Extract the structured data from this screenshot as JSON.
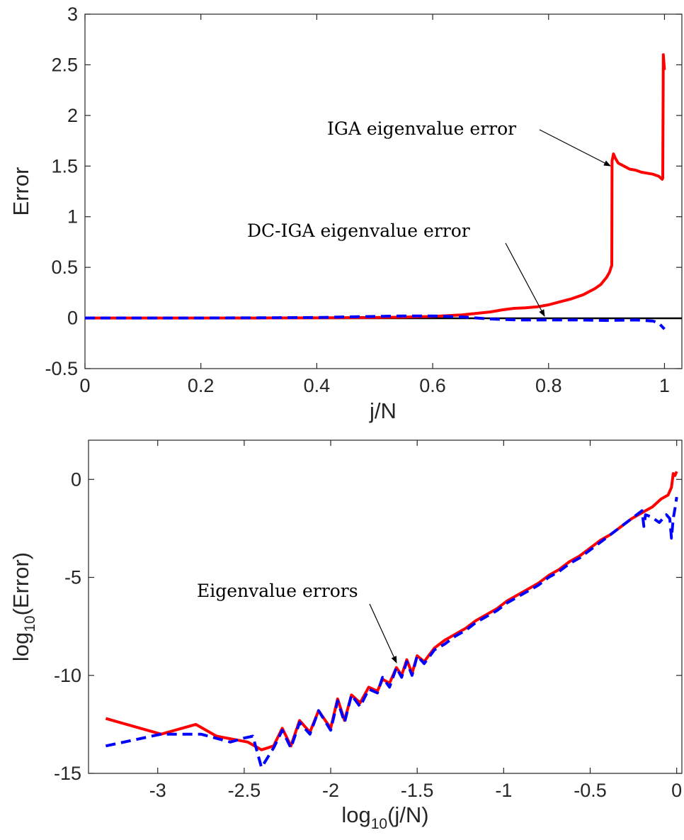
{
  "colors": {
    "iga": "#ff0000",
    "dc_iga": "#0000ff",
    "zero_line": "#000000",
    "axes": "#262626"
  },
  "chart_data": [
    {
      "type": "line",
      "xlabel": "j/N",
      "ylabel": "Error",
      "xlim": [
        0,
        1.03
      ],
      "ylim": [
        -0.5,
        3
      ],
      "xticks": [
        0,
        0.2,
        0.4,
        0.6,
        0.8,
        1
      ],
      "xtick_labels": [
        "0",
        "0.2",
        "0.4",
        "0.6",
        "0.8",
        "1"
      ],
      "yticks": [
        -0.5,
        0,
        0.5,
        1,
        1.5,
        2,
        2.5,
        3
      ],
      "ytick_labels": [
        "-0.5",
        "0",
        "0.5",
        "1",
        "1.5",
        "2",
        "2.5",
        "3"
      ],
      "grid": false,
      "reference_line_y": 0,
      "series": [
        {
          "key": "iga",
          "style": "solid",
          "x": [
            0,
            0.1,
            0.2,
            0.3,
            0.4,
            0.45,
            0.5,
            0.55,
            0.6,
            0.65,
            0.7,
            0.72,
            0.74,
            0.76,
            0.78,
            0.8,
            0.82,
            0.84,
            0.86,
            0.88,
            0.89,
            0.9,
            0.905,
            0.909,
            0.9095,
            0.912,
            0.915,
            0.92,
            0.93,
            0.94,
            0.95,
            0.96,
            0.97,
            0.98,
            0.99,
            0.996,
            0.997,
            0.998,
            1.0
          ],
          "y": [
            0,
            0,
            0,
            0,
            0.001,
            0.003,
            0.005,
            0.008,
            0.015,
            0.03,
            0.06,
            0.08,
            0.095,
            0.1,
            0.11,
            0.13,
            0.16,
            0.19,
            0.23,
            0.29,
            0.33,
            0.4,
            0.45,
            0.52,
            1.55,
            1.62,
            1.58,
            1.53,
            1.5,
            1.47,
            1.46,
            1.44,
            1.43,
            1.42,
            1.4,
            1.37,
            1.38,
            2.6,
            2.45
          ]
        },
        {
          "key": "dc_iga",
          "style": "dashed",
          "x": [
            0,
            0.1,
            0.2,
            0.3,
            0.4,
            0.45,
            0.5,
            0.55,
            0.6,
            0.65,
            0.7,
            0.75,
            0.8,
            0.85,
            0.9,
            0.95,
            0.98,
            0.99,
            1.0
          ],
          "y": [
            0,
            0,
            0,
            0.002,
            0.005,
            0.01,
            0.015,
            0.02,
            0.02,
            0.01,
            -0.01,
            -0.02,
            -0.02,
            -0.02,
            -0.025,
            -0.02,
            -0.03,
            -0.05,
            -0.11
          ]
        }
      ],
      "annotations": [
        {
          "text": "IGA eigenvalue error",
          "point": [
            0.91,
            1.52
          ]
        },
        {
          "text": "DC-IGA eigenvalue error",
          "point": [
            0.795,
            0
          ]
        }
      ]
    },
    {
      "type": "line",
      "xlabel_base": "log",
      "xlabel_sub": "10",
      "xlabel_arg": "(j/N)",
      "ylabel_base": "log",
      "ylabel_sub": "10",
      "ylabel_arg": "(Error)",
      "xlim": [
        -3.4,
        0.03
      ],
      "ylim": [
        -15,
        2
      ],
      "xticks": [
        -3,
        -2.5,
        -2,
        -1.5,
        -1,
        -0.5,
        0
      ],
      "xtick_labels": [
        "-3",
        "-2.5",
        "-2",
        "-1.5",
        "-1",
        "-0.5",
        "0"
      ],
      "yticks": [
        -15,
        -10,
        -5,
        0
      ],
      "ytick_labels": [
        "-15",
        "-10",
        "-5",
        "0"
      ],
      "grid": false,
      "series": [
        {
          "key": "iga",
          "style": "solid",
          "x": [
            -3.3,
            -2.98,
            -2.78,
            -2.66,
            -2.48,
            -2.4,
            -2.33,
            -2.28,
            -2.23,
            -2.18,
            -2.12,
            -2.07,
            -2.0,
            -1.96,
            -1.92,
            -1.88,
            -1.83,
            -1.78,
            -1.73,
            -1.7,
            -1.66,
            -1.62,
            -1.59,
            -1.56,
            -1.53,
            -1.5,
            -1.46,
            -1.4,
            -1.34,
            -1.28,
            -1.22,
            -1.16,
            -1.1,
            -1.04,
            -0.98,
            -0.92,
            -0.86,
            -0.8,
            -0.74,
            -0.68,
            -0.62,
            -0.56,
            -0.5,
            -0.44,
            -0.38,
            -0.32,
            -0.26,
            -0.2,
            -0.14,
            -0.09,
            -0.05,
            -0.03,
            -0.02,
            -0.01,
            0
          ],
          "y": [
            -12.2,
            -13.0,
            -12.5,
            -13.1,
            -13.4,
            -13.8,
            -13.6,
            -12.7,
            -13.6,
            -12.3,
            -12.9,
            -11.8,
            -12.7,
            -11.2,
            -12.3,
            -11.0,
            -11.4,
            -10.6,
            -10.8,
            -10.2,
            -10.4,
            -9.6,
            -10.0,
            -9.2,
            -9.9,
            -9.0,
            -9.3,
            -8.6,
            -8.2,
            -7.9,
            -7.6,
            -7.2,
            -6.9,
            -6.6,
            -6.2,
            -5.9,
            -5.6,
            -5.3,
            -4.9,
            -4.6,
            -4.2,
            -3.9,
            -3.5,
            -3.1,
            -2.8,
            -2.4,
            -2.0,
            -1.7,
            -1.4,
            -1.0,
            -0.8,
            -0.4,
            0.3,
            0.2,
            0.4
          ]
        },
        {
          "key": "dc_iga",
          "style": "dashed",
          "x": [
            -3.3,
            -2.98,
            -2.75,
            -2.58,
            -2.5,
            -2.45,
            -2.4,
            -2.33,
            -2.28,
            -2.23,
            -2.18,
            -2.12,
            -2.07,
            -2.0,
            -1.96,
            -1.92,
            -1.88,
            -1.83,
            -1.78,
            -1.73,
            -1.7,
            -1.66,
            -1.62,
            -1.59,
            -1.56,
            -1.53,
            -1.5,
            -1.46,
            -1.4,
            -1.34,
            -1.28,
            -1.22,
            -1.16,
            -1.1,
            -1.04,
            -0.98,
            -0.92,
            -0.86,
            -0.8,
            -0.74,
            -0.68,
            -0.62,
            -0.56,
            -0.5,
            -0.44,
            -0.38,
            -0.32,
            -0.26,
            -0.2,
            -0.19,
            -0.18,
            -0.15,
            -0.1,
            -0.06,
            -0.04,
            -0.03,
            -0.02,
            -0.01,
            0
          ],
          "y": [
            -13.6,
            -13.0,
            -13.0,
            -13.4,
            -13.2,
            -13.1,
            -14.7,
            -13.7,
            -12.8,
            -13.7,
            -12.4,
            -13.0,
            -11.8,
            -12.8,
            -11.3,
            -12.4,
            -11.0,
            -11.6,
            -10.7,
            -10.9,
            -10.1,
            -10.6,
            -9.6,
            -10.1,
            -9.3,
            -10.0,
            -9.0,
            -9.4,
            -8.7,
            -8.4,
            -8.0,
            -7.7,
            -7.3,
            -7.0,
            -6.7,
            -6.3,
            -6.0,
            -5.7,
            -5.4,
            -5.0,
            -4.7,
            -4.3,
            -4.0,
            -3.6,
            -3.2,
            -2.8,
            -2.4,
            -2.0,
            -1.6,
            -2.4,
            -1.8,
            -1.9,
            -2.2,
            -1.8,
            -2.0,
            -3.0,
            -2.0,
            -1.5,
            -0.9
          ]
        }
      ],
      "annotations": [
        {
          "text": "Eigenvalue errors",
          "point": [
            -1.6,
            -9.6
          ]
        }
      ]
    }
  ]
}
